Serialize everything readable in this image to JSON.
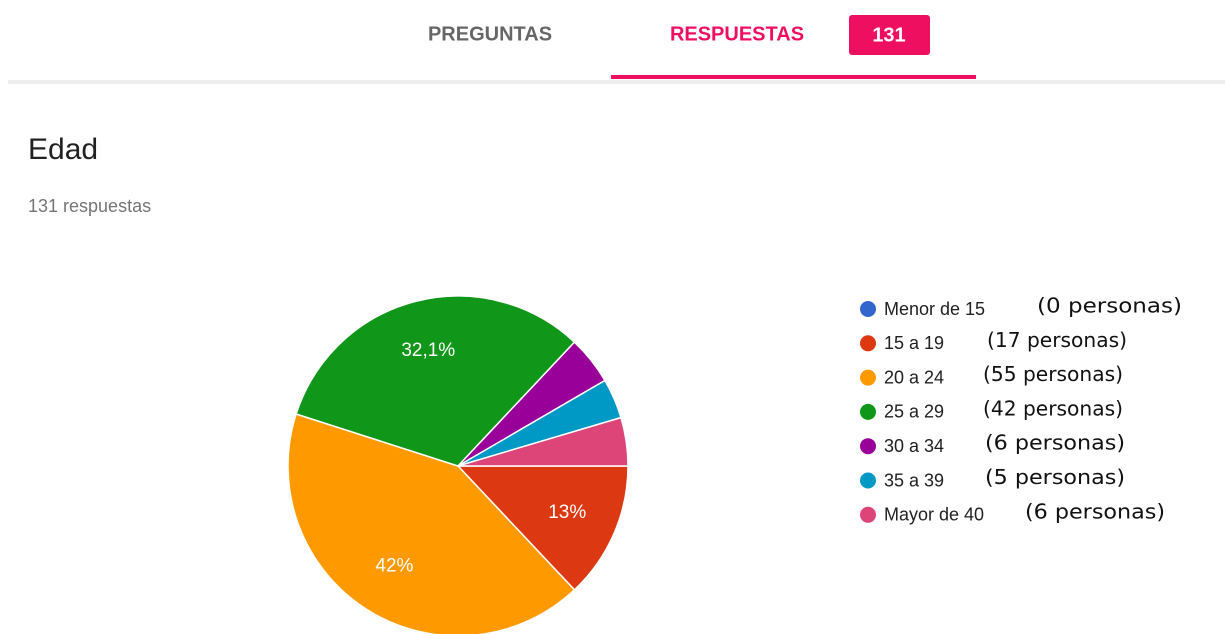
{
  "header": {
    "tabs": [
      "PREGUNTAS",
      "RESPUESTAS"
    ],
    "count": "131"
  },
  "chart_data": {
    "type": "pie",
    "title": "Edad",
    "subtitle": "131 respuestas",
    "categories": [
      "Menor de 15",
      "15 a 19",
      "20 a 24",
      "25 a 29",
      "30 a 34",
      "35 a 39",
      "Mayor de 40"
    ],
    "values": [
      0,
      13,
      42,
      32.1,
      4.6,
      3.8,
      4.6
    ],
    "value_labels": [
      null,
      "13%",
      "42%",
      "32,1%",
      null,
      null,
      null
    ],
    "colors": [
      "#3366cc",
      "#dc3912",
      "#ff9900",
      "#109618",
      "#990099",
      "#0099c6",
      "#dd4477"
    ],
    "annotations": [
      "(0 personas)",
      "(17 personas)",
      "(55 personas)",
      "(42 personas)",
      "(6 personas)",
      "(5 personas)",
      "(6 personas)"
    ]
  }
}
